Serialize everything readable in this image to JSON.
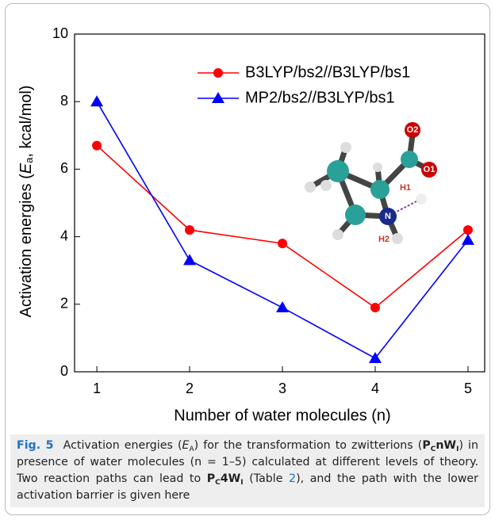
{
  "chart_data": {
    "type": "line",
    "x": [
      1,
      2,
      3,
      4,
      5
    ],
    "xlim": [
      0.76,
      5.18
    ],
    "xticks": [
      1,
      2,
      3,
      4,
      5
    ],
    "ylim": [
      0,
      10
    ],
    "yticks": [
      0,
      2,
      4,
      6,
      8,
      10
    ],
    "xlabel": "Number of water molecules (n)",
    "ylabel": [
      "Activation energies (",
      "E",
      "a",
      ", kcal/mol)"
    ],
    "legend": "upper right",
    "series": [
      {
        "name": "B3LYP/bs2//B3LYP/bs1",
        "color": "#ff0000",
        "marker": "circle",
        "values": [
          6.7,
          4.2,
          3.8,
          1.9,
          4.2
        ]
      },
      {
        "name": "MP2/bs2//B3LYP/bs1",
        "color": "#0000ff",
        "marker": "triangle",
        "values": [
          8.0,
          3.3,
          1.9,
          0.4,
          3.9
        ]
      }
    ]
  },
  "molecule_labels": [
    "O2",
    "O1",
    "H1",
    "N",
    "H2"
  ],
  "caption": {
    "label": "Fig. 5",
    "parts": [
      "Activation energies (",
      "E",
      "A",
      ") for the transformation to zwitterions (",
      "P",
      "C",
      "nW",
      "I",
      ") in presence of water molecules (n = 1–5) calculated at different levels of theory. Two reaction paths can lead to ",
      "P",
      "C",
      "4W",
      "I",
      " (Table ",
      "2",
      "), and the path with the lower activation barrier is given here"
    ]
  }
}
